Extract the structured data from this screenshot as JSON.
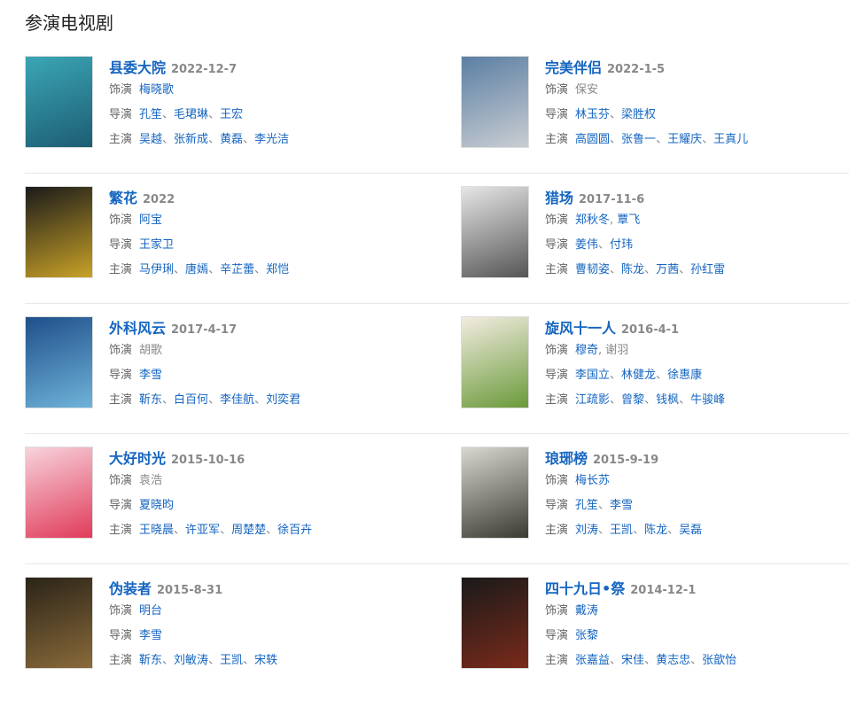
{
  "heading": "参演电视剧",
  "labels": {
    "role": "饰演",
    "director": "导演",
    "stars": "主演"
  },
  "shows": [
    {
      "title": "县委大院",
      "date": "2022-12-7",
      "role": [
        {
          "name": "梅晓歌",
          "link": true
        }
      ],
      "directors": [
        "孔笙",
        "毛珺琳",
        "王宏"
      ],
      "stars": [
        "吴越",
        "张新成",
        "黄磊",
        "李光洁"
      ],
      "poster_colors": [
        "#3aa6b5",
        "#1d5d73"
      ]
    },
    {
      "title": "完美伴侣",
      "date": "2022-1-5",
      "role": [
        {
          "name": "保安",
          "link": false
        }
      ],
      "directors": [
        "林玉芬",
        "梁胜权"
      ],
      "stars": [
        "高圆圆",
        "张鲁一",
        "王耀庆",
        "王真儿"
      ],
      "poster_colors": [
        "#5b7fa3",
        "#c9cdd2"
      ]
    },
    {
      "title": "繁花",
      "date": "2022",
      "role": [
        {
          "name": "阿宝",
          "link": true
        }
      ],
      "directors": [
        "王家卫"
      ],
      "stars": [
        "马伊琍",
        "唐嫣",
        "辛芷蕾",
        "郑恺"
      ],
      "poster_colors": [
        "#1a1a1a",
        "#c9a227"
      ]
    },
    {
      "title": "猎场",
      "date": "2017-11-6",
      "role": [
        {
          "name": "郑秋冬",
          "link": true
        },
        {
          "name": "覃飞",
          "link": true
        }
      ],
      "directors": [
        "姜伟",
        "付玮"
      ],
      "stars": [
        "曹韧姿",
        "陈龙",
        "万茜",
        "孙红雷"
      ],
      "poster_colors": [
        "#e6e6e6",
        "#555555"
      ]
    },
    {
      "title": "外科风云",
      "date": "2017-4-17",
      "role": [
        {
          "name": "胡歌",
          "link": false
        }
      ],
      "directors": [
        "李雪"
      ],
      "stars": [
        "靳东",
        "白百何",
        "李佳航",
        "刘奕君"
      ],
      "poster_colors": [
        "#1f4f8a",
        "#6fb3d9"
      ]
    },
    {
      "title": "旋风十一人",
      "date": "2016-4-1",
      "role": [
        {
          "name": "穆奇",
          "link": true
        },
        {
          "name": "谢羽",
          "link": false
        }
      ],
      "directors": [
        "李国立",
        "林健龙",
        "徐惠康"
      ],
      "stars": [
        "江疏影",
        "曾黎",
        "钱枫",
        "牛骏峰"
      ],
      "poster_colors": [
        "#f2ece0",
        "#6a9a3a"
      ]
    },
    {
      "title": "大好时光",
      "date": "2015-10-16",
      "role": [
        {
          "name": "袁浩",
          "link": false
        }
      ],
      "directors": [
        "夏晓昀"
      ],
      "stars": [
        "王晓晨",
        "许亚军",
        "周楚楚",
        "徐百卉"
      ],
      "poster_colors": [
        "#f7d3dc",
        "#e03b5a"
      ]
    },
    {
      "title": "琅琊榜",
      "date": "2015-9-19",
      "role": [
        {
          "name": "梅长苏",
          "link": true
        }
      ],
      "directors": [
        "孔笙",
        "李雪"
      ],
      "stars": [
        "刘涛",
        "王凯",
        "陈龙",
        "吴磊"
      ],
      "poster_colors": [
        "#d8d8d0",
        "#3a3a32"
      ]
    },
    {
      "title": "伪装者",
      "date": "2015-8-31",
      "role": [
        {
          "name": "明台",
          "link": true
        }
      ],
      "directors": [
        "李雪"
      ],
      "stars": [
        "靳东",
        "刘敏涛",
        "王凯",
        "宋轶"
      ],
      "poster_colors": [
        "#2a2418",
        "#8a6a3a"
      ]
    },
    {
      "title": "四十九日•祭",
      "date": "2014-12-1",
      "role": [
        {
          "name": "戴涛",
          "link": true
        }
      ],
      "directors": [
        "张黎"
      ],
      "stars": [
        "张嘉益",
        "宋佳",
        "黄志忠",
        "张歆怡"
      ],
      "poster_colors": [
        "#1a1a1a",
        "#7a2a1a"
      ]
    }
  ]
}
